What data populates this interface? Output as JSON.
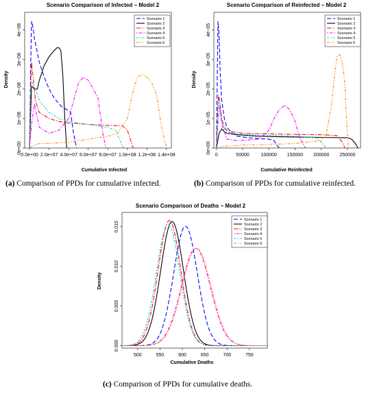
{
  "captions": {
    "a": {
      "label": "(a)",
      "text": "Comparison of PPDs for cumulative infected."
    },
    "b": {
      "label": "(b)",
      "text": "Comparison of PPDs for cumulative reinfected."
    },
    "c": {
      "label": "(c)",
      "text": "Comparison of PPDs for cumulative deaths."
    }
  },
  "legend_labels": [
    "Scenario 1",
    "Scenario 2",
    "Scenario 3",
    "Scenario 4",
    "Scenario 5",
    "Scenario 6"
  ],
  "series_colors": [
    "#0000ff",
    "#000000",
    "#ff0000",
    "#ff00ff",
    "#00cccc",
    "#ff8800"
  ],
  "chart_data": [
    {
      "type": "line",
      "title": "Scenario Comparison of Infected − Model 2",
      "xlabel": "Cumulative Infected",
      "ylabel": "Density",
      "xlim": [
        -5000000,
        145000000
      ],
      "ylim": [
        0,
        4.6e-08
      ],
      "xticks": [
        0,
        20000000,
        40000000,
        60000000,
        80000000,
        100000000,
        120000000,
        140000000
      ],
      "xtick_labels": [
        "0.0e+00",
        "2.0e+07",
        "4.0e+07",
        "6.0e+07",
        "8.0e+07",
        "1.0e+08",
        "1.2e+08",
        "1.4e+08"
      ],
      "yticks": [
        0,
        1e-08,
        2e-08,
        3e-08,
        4e-08
      ],
      "ytick_labels": [
        "0e+00",
        "1e−08",
        "2e−08",
        "3e−08",
        "4e−08"
      ],
      "legend_position": "top-right",
      "series": [
        {
          "name": "Scenario 1",
          "x": [
            0,
            1000000,
            2000000,
            3000000,
            5000000,
            10000000,
            15000000,
            20000000,
            25000000,
            30000000,
            33000000,
            38000000,
            42000000,
            45000000,
            48000000
          ],
          "y": [
            0,
            2.5e-08,
            4.3e-08,
            4.2e-08,
            3.7e-08,
            2.9e-08,
            2.4e-08,
            2e-08,
            1.7e-08,
            1.5e-08,
            1.4e-08,
            1.3e-08,
            1.2e-08,
            5e-09,
            0
          ]
        },
        {
          "name": "Scenario 2",
          "x": [
            0,
            2000000,
            5000000,
            8000000,
            10000000,
            15000000,
            20000000,
            25000000,
            28000000,
            30000000,
            32000000,
            34000000,
            36000000,
            38000000
          ],
          "y": [
            0,
            2.1e-08,
            2e-08,
            2e-08,
            2.3e-08,
            2.8e-08,
            3.1e-08,
            3.3e-08,
            3.4e-08,
            3.4e-08,
            3.3e-08,
            2.5e-08,
            1e-08,
            0
          ]
        },
        {
          "name": "Scenario 3",
          "x": [
            0,
            1000000,
            2000000,
            4000000,
            6000000,
            10000000,
            20000000,
            30000000,
            40000000,
            60000000,
            80000000,
            95000000,
            100000000,
            103000000,
            106000000
          ],
          "y": [
            0,
            2e-08,
            2.9e-08,
            2.3e-08,
            1.6e-08,
            1.2e-08,
            1e-08,
            9e-09,
            8.5e-09,
            8e-09,
            7.7e-09,
            7.5e-09,
            6e-09,
            3e-09,
            0
          ]
        },
        {
          "name": "Scenario 4",
          "x": [
            0,
            2000000,
            5000000,
            10000000,
            20000000,
            30000000,
            40000000,
            45000000,
            50000000,
            55000000,
            60000000,
            65000000,
            70000000,
            72000000,
            75000000,
            78000000
          ],
          "y": [
            0,
            8e-09,
            1.5e-08,
            7e-09,
            5e-09,
            6e-09,
            1e-08,
            1.6e-08,
            2.2e-08,
            2.4e-08,
            2.3e-08,
            2e-08,
            1.7e-08,
            1.2e-08,
            5e-09,
            0
          ]
        },
        {
          "name": "Scenario 5",
          "x": [
            0,
            1000000,
            3000000,
            6000000,
            10000000,
            20000000,
            30000000,
            40000000,
            50000000,
            60000000,
            70000000,
            80000000,
            88000000,
            92000000,
            96000000
          ],
          "y": [
            0,
            2e-08,
            2.2e-08,
            2e-08,
            1.6e-08,
            1.2e-08,
            1e-08,
            9e-09,
            8.5e-09,
            8e-09,
            7.5e-09,
            7e-09,
            6e-09,
            3e-09,
            0
          ]
        },
        {
          "name": "Scenario 6",
          "x": [
            0,
            5000000,
            10000000,
            20000000,
            40000000,
            60000000,
            80000000,
            90000000,
            100000000,
            105000000,
            110000000,
            115000000,
            120000000,
            125000000,
            130000000,
            135000000,
            140000000
          ],
          "y": [
            0,
            1e-09,
            1.5e-09,
            1.5e-09,
            2e-09,
            3e-09,
            4e-09,
            5e-09,
            1e-08,
            1.8e-08,
            2.4e-08,
            2.5e-08,
            2.4e-08,
            2.2e-08,
            1.8e-08,
            7e-09,
            0
          ]
        }
      ]
    },
    {
      "type": "line",
      "title": "Scenario Comparison of Reinfected − Model 2",
      "xlabel": "Cumulative Reinfected",
      "ylabel": "Density",
      "xlim": [
        -5000,
        275000
      ],
      "ylim": [
        0,
        4.6e-05
      ],
      "xticks": [
        0,
        50000,
        100000,
        150000,
        200000,
        250000
      ],
      "xtick_labels": [
        "0",
        "50000",
        "100000",
        "150000",
        "200000",
        "250000"
      ],
      "yticks": [
        0,
        1e-05,
        2e-05,
        3e-05,
        4e-05
      ],
      "ytick_labels": [
        "0e+00",
        "1e−05",
        "2e−05",
        "3e−05",
        "4e−05"
      ],
      "legend_position": "top-right",
      "series": [
        {
          "name": "Scenario 1",
          "x": [
            0,
            1500,
            3000,
            5000,
            7000,
            10000,
            15000,
            20000,
            30000,
            40000,
            60000,
            80000,
            100000,
            110000,
            115000,
            120000
          ],
          "y": [
            0,
            2.5e-05,
            4.3e-05,
            3.8e-05,
            2.6e-05,
            1.6e-05,
            1e-05,
            7e-06,
            5e-06,
            4e-06,
            3.5e-06,
            3.2e-06,
            3e-06,
            2.5e-06,
            1e-06,
            0
          ]
        },
        {
          "name": "Scenario 2",
          "x": [
            0,
            5000,
            10000,
            15000,
            20000,
            40000,
            80000,
            120000,
            160000,
            200000,
            240000,
            250000,
            258000,
            265000,
            270000
          ],
          "y": [
            0,
            5e-06,
            6.5e-06,
            5.5e-06,
            5e-06,
            4.5e-06,
            4e-06,
            3.8e-06,
            3.7e-06,
            3.6e-06,
            3.5e-06,
            3.5e-06,
            3e-06,
            1.5e-06,
            0
          ]
        },
        {
          "name": "Scenario 3",
          "x": [
            0,
            2000,
            4000,
            6000,
            10000,
            15000,
            20000,
            30000,
            50000,
            100000,
            150000,
            200000,
            230000,
            240000,
            245000
          ],
          "y": [
            0,
            1.2e-05,
            1.8e-05,
            1.6e-05,
            1e-05,
            7e-06,
            6e-06,
            5.5e-06,
            5e-06,
            4.8e-06,
            4.6e-06,
            4.5e-06,
            4.2e-06,
            2e-06,
            0
          ]
        },
        {
          "name": "Scenario 4",
          "x": [
            0,
            3000,
            6000,
            10000,
            20000,
            40000,
            80000,
            100000,
            110000,
            120000,
            130000,
            140000,
            150000,
            160000,
            170000
          ],
          "y": [
            0,
            9e-06,
            1.4e-05,
            8e-06,
            3e-06,
            2.5e-06,
            3e-06,
            6e-06,
            1e-05,
            1.3e-05,
            1.45e-05,
            1.3e-05,
            9e-06,
            3e-06,
            0
          ]
        },
        {
          "name": "Scenario 5",
          "x": [
            0,
            2000,
            4000,
            6000,
            10000,
            15000,
            20000,
            30000,
            50000,
            100000,
            150000,
            190000,
            200000,
            205000,
            210000
          ],
          "y": [
            0,
            1.2e-05,
            1.6e-05,
            1.4e-05,
            9e-06,
            6.5e-06,
            5.5e-06,
            5e-06,
            4.6e-06,
            4.3e-06,
            4e-06,
            3.5e-06,
            2e-06,
            1e-06,
            0
          ]
        },
        {
          "name": "Scenario 6",
          "x": [
            0,
            10000,
            50000,
            100000,
            150000,
            200000,
            210000,
            220000,
            225000,
            230000,
            235000,
            240000,
            245000,
            248000,
            252000
          ],
          "y": [
            0,
            5e-07,
            1e-06,
            1.2e-06,
            1.5e-06,
            2.5e-06,
            5e-06,
            1.5e-05,
            2.4e-05,
            3.1e-05,
            3.2e-05,
            2.9e-05,
            2.2e-05,
            1e-05,
            0
          ]
        }
      ]
    },
    {
      "type": "line",
      "title": "Scenario Comparison of Deaths − Model 2",
      "xlabel": "Cumulative Deaths",
      "ylabel": "Density",
      "xlim": [
        465,
        790
      ],
      "ylim": [
        -0.0003,
        0.0168
      ],
      "xticks": [
        500,
        550,
        600,
        650,
        700,
        750
      ],
      "xtick_labels": [
        "500",
        "550",
        "600",
        "650",
        "700",
        "750"
      ],
      "yticks": [
        0,
        0.005,
        0.01,
        0.015
      ],
      "ytick_labels": [
        "0.000",
        "0.005",
        "0.010",
        "0.015"
      ],
      "legend_position": "top-right",
      "series": [
        {
          "name": "Scenario 1",
          "mean": 607,
          "sd": 26.5
        },
        {
          "name": "Scenario 2",
          "mean": 577,
          "sd": 25.5
        },
        {
          "name": "Scenario 3",
          "mean": 571,
          "sd": 25.3
        },
        {
          "name": "Scenario 4",
          "mean": 630,
          "sd": 32.5
        },
        {
          "name": "Scenario 5",
          "mean": 568,
          "sd": 26.0
        },
        {
          "name": "Scenario 6",
          "mean": 632,
          "sd": 32.5
        }
      ]
    }
  ]
}
